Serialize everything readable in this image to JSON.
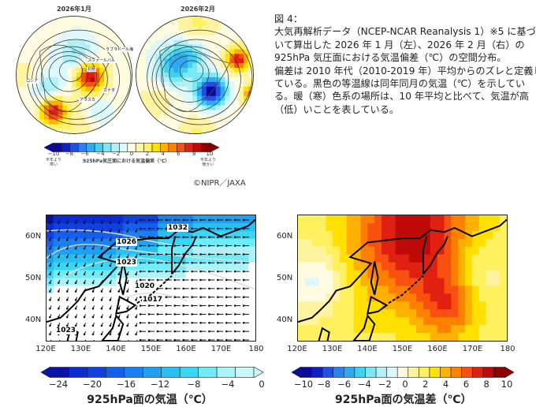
{
  "top_figure": {
    "left_title": "2026年1月",
    "right_title": "2026年2月",
    "left_map_labels": [
      "ラブラドール海",
      "スヴァールバル",
      "北極",
      "ロシア",
      "カナダ",
      "アラスカ"
    ],
    "colorbar": {
      "ticks": [
        "−10",
        "−8",
        "−6",
        "−4",
        "−2",
        "0",
        "2",
        "4",
        "6",
        "8",
        "10"
      ],
      "label": "925hPa気圧面における気温偏差（℃）",
      "left_note": "平年より寒い",
      "right_note": "平年より暖かい"
    },
    "copyright": "©NIPR／JAXA"
  },
  "caption": {
    "lines": [
      "図 4：",
      "大気再解析データ（NCEP-NCAR Reanalysis 1）※5 に基づ",
      "いて算出した 2026 年 1 月（左）、2026 年 2 月（右）の",
      "925hPa 気圧面における気温偏差（℃）の空間分布。",
      "偏差は 2010 年代（2010-2019 年）平均からのズレと定義し",
      "ている。黒色の等温線は同年同月の気温（℃）を示してい",
      "る。暖（寒）色系の場所は、10 年平均と比べて、気温が高",
      "（低）いことを表している。"
    ]
  },
  "bottom_left": {
    "y_ticks": [
      "60N",
      "50N",
      "40N"
    ],
    "x_ticks": [
      "120E",
      "130E",
      "140E",
      "150E",
      "160E",
      "170E",
      "180"
    ],
    "isobar_labels": [
      "1032",
      "1026",
      "1023",
      "1020",
      "1017",
      "1023"
    ],
    "colorbar_ticks": [
      "−24",
      "−20",
      "−16",
      "−12",
      "−8",
      "−4",
      "0"
    ],
    "title": "925hPa面の気温（℃）"
  },
  "bottom_right": {
    "y_ticks": [
      "60N",
      "50N",
      "40N"
    ],
    "x_ticks": [
      "120E",
      "130E",
      "140E",
      "150E",
      "160E",
      "170E",
      "180"
    ],
    "colorbar_ticks": [
      "−10",
      "−8",
      "−6",
      "−4",
      "−2",
      "0",
      "2",
      "4",
      "6",
      "8",
      "10"
    ],
    "title": "925hPa面の気温差（℃）"
  },
  "colors": {
    "anom_scale": [
      "#0a0a9c",
      "#1020c8",
      "#1f4fe6",
      "#2a80f0",
      "#30a8f0",
      "#3ed0f0",
      "#7ae8f4",
      "#b0f0f6",
      "#dcf8fa",
      "#fffbe0",
      "#fff3a0",
      "#fff060",
      "#ffe000",
      "#ffb000",
      "#ff8000",
      "#f85010",
      "#e02010",
      "#c00a0a",
      "#8e0000"
    ],
    "temp_scale": [
      "#0a12a8",
      "#0b2cd0",
      "#1040e0",
      "#1460ec",
      "#1880f0",
      "#20a0f0",
      "#28c0f0",
      "#38d8f4",
      "#70ecf8",
      "#a8f4fa",
      "#ffffff"
    ]
  }
}
